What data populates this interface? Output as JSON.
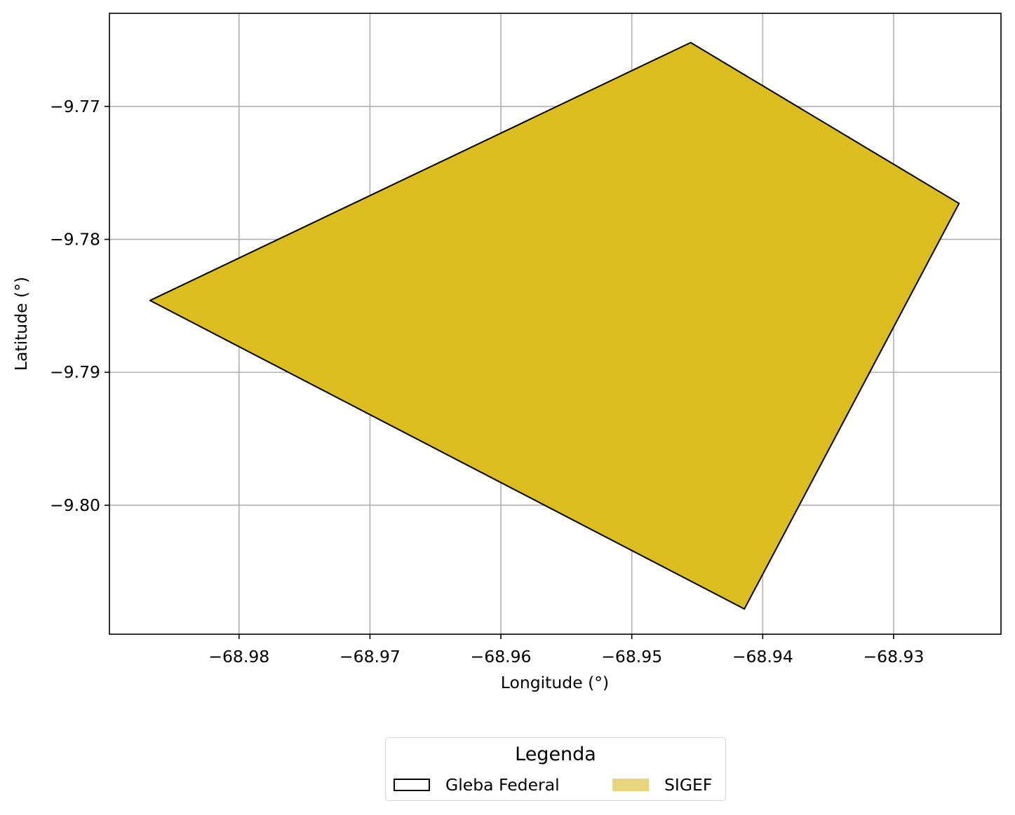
{
  "chart_data": {
    "type": "map",
    "xlabel": "Longitude (°)",
    "ylabel": "Latitude (°)",
    "xlim": [
      -68.9899,
      -68.9218
    ],
    "ylim": [
      -9.8097,
      -9.763
    ],
    "xticks": [
      -68.98,
      -68.97,
      -68.96,
      -68.95,
      -68.94,
      -68.93
    ],
    "yticks": [
      -9.77,
      -9.78,
      -9.79,
      -9.8
    ],
    "xtick_labels": [
      "−68.98",
      "−68.97",
      "−68.96",
      "−68.95",
      "−68.94",
      "−68.93"
    ],
    "ytick_labels": [
      "−9.77",
      "−9.78",
      "−9.79",
      "−9.80"
    ],
    "grid": true,
    "polygon": {
      "name": "SIGEF",
      "fill_color": "#dcbd20",
      "edge_color": "#000000",
      "vertices": [
        [
          -68.9868,
          -9.7846
        ],
        [
          -68.9455,
          -9.7652
        ],
        [
          -68.925,
          -9.7773
        ],
        [
          -68.9414,
          -9.8078
        ]
      ]
    },
    "legend": {
      "title": "Legenda",
      "placement": "bottom-center",
      "entries": [
        {
          "label": "Gleba Federal",
          "style": "outline",
          "edge_color": "#000000",
          "fill_color": "#ffffff"
        },
        {
          "label": "SIGEF",
          "style": "fill",
          "fill_color": "#e8d47c"
        }
      ]
    }
  }
}
